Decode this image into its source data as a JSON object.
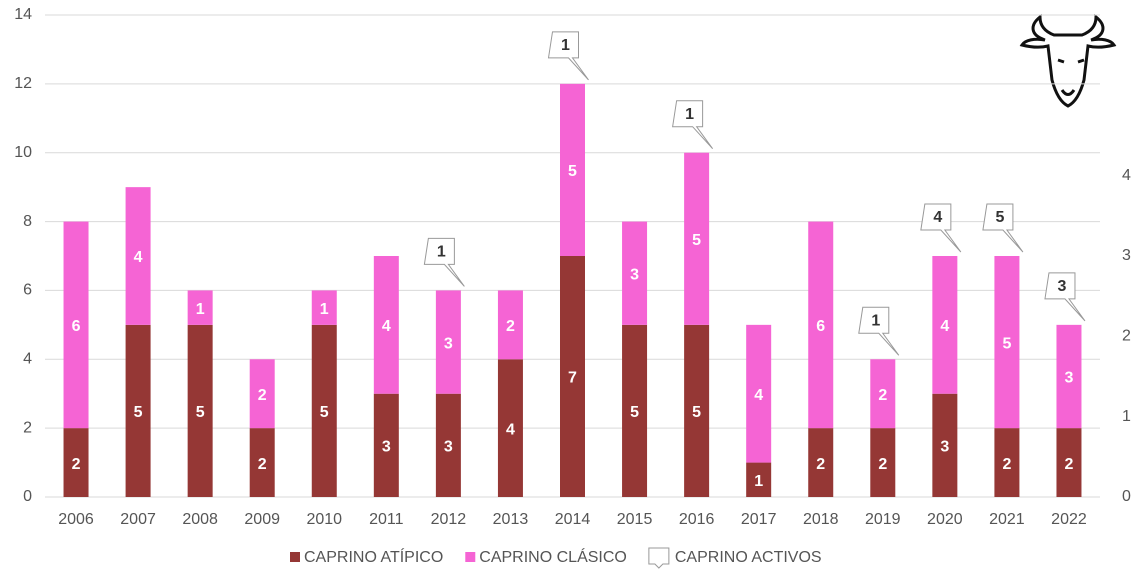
{
  "chart_data": {
    "type": "stacked-bar",
    "categories": [
      "2006",
      "2007",
      "2008",
      "2009",
      "2010",
      "2011",
      "2012",
      "2013",
      "2014",
      "2015",
      "2016",
      "2017",
      "2018",
      "2019",
      "2020",
      "2021",
      "2022"
    ],
    "series": [
      {
        "name": "CAPRINO ATÍPICO",
        "color": "#953735",
        "values": [
          2,
          5,
          5,
          2,
          5,
          3,
          3,
          4,
          7,
          5,
          5,
          1,
          2,
          2,
          3,
          2,
          2
        ]
      },
      {
        "name": "CAPRINO CLÁSICO",
        "color": "#f564d4",
        "values": [
          6,
          4,
          1,
          2,
          1,
          4,
          3,
          2,
          5,
          3,
          5,
          4,
          6,
          2,
          4,
          5,
          3
        ]
      },
      {
        "name": "CAPRINO ACTIVOS",
        "color": "#ffffff",
        "axis": "y2",
        "values": [
          null,
          null,
          null,
          null,
          null,
          null,
          1,
          null,
          1,
          null,
          1,
          null,
          null,
          1,
          4,
          5,
          3
        ]
      }
    ],
    "ylim": [
      0,
      14
    ],
    "yticks": [
      0,
      2,
      4,
      6,
      8,
      10,
      12,
      14
    ],
    "y2lim": [
      0,
      6
    ],
    "y2ticks": [
      0,
      1,
      2,
      3,
      4
    ],
    "grid": true,
    "legend": "bottom"
  }
}
